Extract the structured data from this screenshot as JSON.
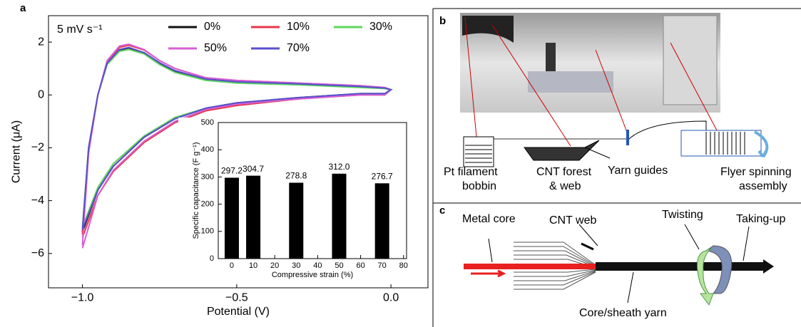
{
  "panel_labels": [
    "a",
    "b",
    "c"
  ],
  "chart_data": [
    {
      "type": "line",
      "annotation": "5 mV s⁻¹",
      "xlabel": "Potential (V)",
      "ylabel": "Current (μA)",
      "x": [
        -1.0,
        -0.98,
        -0.95,
        -0.92,
        -0.88,
        -0.85,
        -0.8,
        -0.75,
        -0.7,
        -0.6,
        -0.5,
        -0.3,
        -0.1,
        -0.02,
        0.0,
        -0.02,
        -0.1,
        -0.3,
        -0.5,
        -0.6,
        -0.7,
        -0.8,
        -0.9,
        -0.95,
        -1.0
      ],
      "series": [
        {
          "name": "0%",
          "color": "#111111",
          "values": [
            -5.2,
            -2.0,
            0.0,
            1.2,
            1.7,
            1.78,
            1.6,
            1.2,
            0.9,
            0.6,
            0.5,
            0.4,
            0.3,
            0.25,
            0.2,
            0.05,
            0.05,
            -0.1,
            -0.3,
            -0.5,
            -0.9,
            -1.6,
            -2.7,
            -3.6,
            -5.2
          ]
        },
        {
          "name": "10%",
          "color": "#e8374a",
          "values": [
            -5.3,
            -2.1,
            0.0,
            1.25,
            1.8,
            1.88,
            1.7,
            1.3,
            1.0,
            0.65,
            0.55,
            0.45,
            0.35,
            0.28,
            0.2,
            0.0,
            0.0,
            -0.15,
            -0.4,
            -0.6,
            -1.05,
            -1.8,
            -2.9,
            -3.8,
            -5.4
          ]
        },
        {
          "name": "30%",
          "color": "#5cd65c",
          "values": [
            -5.0,
            -2.0,
            0.0,
            1.15,
            1.65,
            1.72,
            1.55,
            1.15,
            0.85,
            0.55,
            0.45,
            0.38,
            0.28,
            0.24,
            0.2,
            0.05,
            0.05,
            -0.1,
            -0.3,
            -0.5,
            -0.85,
            -1.55,
            -2.6,
            -3.5,
            -5.0
          ]
        },
        {
          "name": "50%",
          "color": "#d65fd6",
          "values": [
            -5.7,
            -2.2,
            0.0,
            1.3,
            1.85,
            1.92,
            1.72,
            1.3,
            1.0,
            0.65,
            0.55,
            0.45,
            0.35,
            0.28,
            0.2,
            0.0,
            0.0,
            -0.15,
            -0.35,
            -0.55,
            -1.0,
            -1.75,
            -2.85,
            -3.8,
            -5.8
          ]
        },
        {
          "name": "70%",
          "color": "#5b4fcf",
          "values": [
            -5.1,
            -2.0,
            0.0,
            1.2,
            1.72,
            1.8,
            1.6,
            1.22,
            0.92,
            0.6,
            0.5,
            0.42,
            0.32,
            0.26,
            0.2,
            0.05,
            0.05,
            -0.1,
            -0.3,
            -0.5,
            -0.9,
            -1.6,
            -2.7,
            -3.6,
            -5.1
          ]
        }
      ],
      "xlim": [
        -1.11,
        0.12
      ],
      "xticks": [
        {
          "value": -1.0,
          "label": "−1.0"
        },
        {
          "value": -0.5,
          "label": "−0.5"
        },
        {
          "value": 0,
          "label": "0.0"
        }
      ],
      "ylim": [
        -7.3,
        3
      ],
      "yticks": [
        {
          "value": -6,
          "label": "−6"
        },
        {
          "value": -4,
          "label": "−4"
        },
        {
          "value": -2,
          "label": "−2"
        },
        0,
        2
      ]
    },
    {
      "type": "bar",
      "xlabel": "Compressive strain (%)",
      "ylabel": "Specific capacitance (F g⁻¹)",
      "color": "#000000",
      "x": [
        0,
        10,
        30,
        50,
        70
      ],
      "values": [
        297.2,
        304.7,
        278.8,
        312.0,
        276.7
      ],
      "value_labels": [
        "297.2",
        "304.7",
        "278.8",
        "312.0",
        "276.7"
      ],
      "xlim": [
        -6.3,
        81.4
      ],
      "xticks": [
        0,
        10,
        20,
        30,
        40,
        50,
        60,
        70,
        80
      ],
      "ylim": [
        0,
        500
      ],
      "yticks": [
        0,
        100,
        200,
        300,
        400,
        500
      ]
    }
  ],
  "panel_b": {
    "labels": [
      [
        "Pt filament",
        "bobbin"
      ],
      [
        "CNT forest",
        "& web"
      ],
      [
        "Yarn guides"
      ],
      [
        "Flyer spinning",
        "assembly"
      ]
    ]
  },
  "panel_c": {
    "labels": [
      "Metal core",
      "CNT web",
      "Twisting",
      "Taking-up",
      "Core/sheath yarn"
    ]
  }
}
